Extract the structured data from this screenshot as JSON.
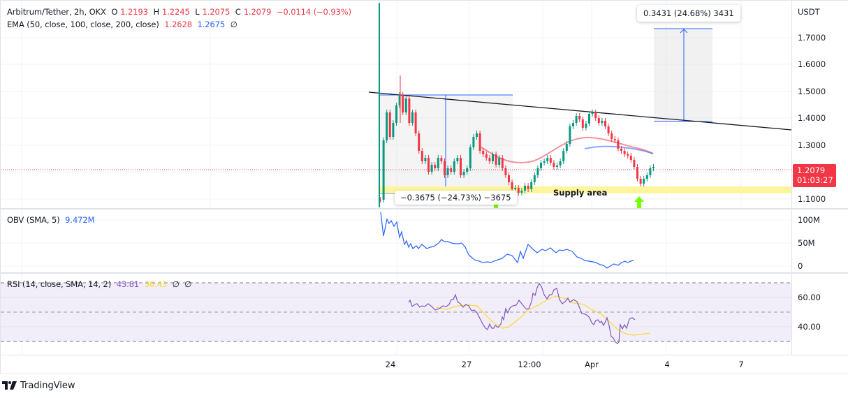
{
  "header": {
    "symbol": "Arbitrum/Tether, 2h, OKX",
    "open_label": "O",
    "open": "1.2193",
    "high_label": "H",
    "high": "1.2245",
    "low_label": "L",
    "low": "1.2075",
    "close_label": "C",
    "close": "1.2079",
    "change": "−0.0114 (−0.93%)"
  },
  "ema": {
    "label": "EMA (50, close, 100, close, 200, close)",
    "ema50": "1.2628",
    "ema100": "1.2675",
    "ema200": "∅",
    "colors": {
      "ema50": "#f23645",
      "ema100": "#2962ff"
    }
  },
  "price_axis": {
    "currency": "USDT",
    "ticks": [
      "1.7000",
      "1.6000",
      "1.5000",
      "1.4000",
      "1.3000",
      "1.1000"
    ],
    "last_price": "1.2079",
    "countdown": "01:03:27",
    "last_price_color": "#f23645"
  },
  "drawings": {
    "long_measure": "0.3431 (24.68%) 3431",
    "short_measure": "−0.3675 (−24.73%) −3675",
    "supply_area_label": "Supply area",
    "supply_color": "#fff59d",
    "trendline_color": "#000000",
    "measure_color": "#2962ff"
  },
  "obv": {
    "label": "OBV (SMA, 5)",
    "value": "9.472M",
    "ticks": [
      "100M",
      "50M",
      "0"
    ]
  },
  "rsi": {
    "label": "RSI (14, close, SMA, 14, 2)",
    "rsi_value": "43.81",
    "sma_value": "36.43",
    "extra1": "∅",
    "extra2": "∅",
    "ticks": [
      "60.00",
      "40.00"
    ]
  },
  "time_axis": {
    "ticks": [
      "24",
      "27",
      "12:00",
      "Apr",
      "4",
      "7"
    ]
  },
  "footer": {
    "brand": "TradingView"
  }
}
